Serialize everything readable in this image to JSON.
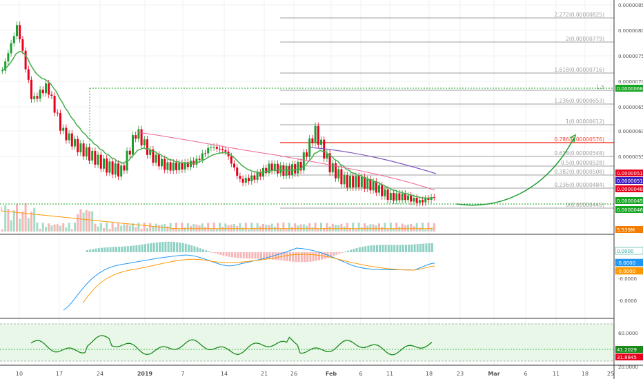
{
  "colors": {
    "up": "#26a69a",
    "down": "#ef5350",
    "ema": "#4caf50",
    "sma_pink": "#f06292",
    "sma_purple": "#7e57c2",
    "fib_line": "#9e9e9e",
    "fib_red": "#f44336",
    "fib_text": "#9e9e9e",
    "arrow": "#1b9e2f",
    "macd": "#2196f3",
    "signal": "#ff9800",
    "rsi": "#1b8a1b",
    "rsi_band": "#e8f7e8",
    "volume_ma": "#ff9800"
  },
  "chart_data": [
    {
      "name": "price",
      "type": "candlestick",
      "x_ticks": [
        "10",
        "17",
        "24",
        "2019",
        "7",
        "14",
        "21",
        "26",
        "Feb",
        "6",
        "11",
        "18",
        "23",
        "Mar",
        "6",
        "11",
        "18",
        "25"
      ],
      "y_ticks": [
        "0.00000850",
        "0.00000800",
        "0.00000750",
        "0.00000700",
        "0.00000650",
        "0.00000600",
        "0.00000550"
      ],
      "ylim": [
        4.1e-06,
        8.6e-06
      ],
      "candles_close_approx": [
        7.2e-06,
        8.1e-06,
        6.6e-06,
        6.9e-06,
        6e-06,
        5.7e-06,
        5.5e-06,
        5.3e-06,
        5.2e-06,
        6e-06,
        5.5e-06,
        5.3e-06,
        5.3e-06,
        5.4e-06,
        5.7e-06,
        5.6e-06,
        5e-06,
        5.1e-06,
        5.3e-06,
        5.2e-06,
        5.3e-06,
        6e-06,
        5.3e-06,
        5e-06,
        5e-06,
        4.9e-06,
        4.7e-06,
        4.7e-06,
        4.6e-06,
        4.7e-06
      ],
      "fib_levels": [
        {
          "ratio": "2.272",
          "price": "0.00000825"
        },
        {
          "ratio": "2",
          "price": "0.00000779"
        },
        {
          "ratio": "1.618",
          "price": "0.00000716"
        },
        {
          "ratio": "1.5",
          "price": ""
        },
        {
          "ratio": "1.236",
          "price": "0.00000653"
        },
        {
          "ratio": "1",
          "price": "0.00000612"
        },
        {
          "ratio": "0.786",
          "price": "0.00000576"
        },
        {
          "ratio": "0.618",
          "price": "0.00000548"
        },
        {
          "ratio": "0.5",
          "price": "0.00000528"
        },
        {
          "ratio": "0.382",
          "price": "0.00000508"
        },
        {
          "ratio": "0.236",
          "price": "0.00000484"
        },
        {
          "ratio": "0",
          "price": "0.00000445"
        }
      ],
      "price_badges": [
        {
          "label": "0.00000685",
          "color": "#16a521"
        },
        {
          "label": "0.00000514",
          "color": "#e8001c"
        },
        {
          "label": "0.00000513",
          "color": "#3f1fc0"
        },
        {
          "label": "0.00000482",
          "color": "#e8001c"
        },
        {
          "label": "0.00000457",
          "color": "#16a521"
        },
        {
          "label": "0.00000463",
          "color": "#16a521"
        },
        {
          "label": "5.539M",
          "color": "#f57c00"
        }
      ]
    },
    {
      "name": "macd",
      "type": "line",
      "y_ticks": [
        "0.0000",
        "-0.0000",
        "-0.0000"
      ],
      "badges": [
        {
          "label": "0.0000",
          "color": "#ffffff",
          "text": "#26a69a"
        },
        {
          "label": "-0.0000",
          "color": "#2196f3",
          "text": "#ffffff"
        },
        {
          "label": "-0.0000",
          "color": "#ff9800",
          "text": "#ffffff"
        }
      ]
    },
    {
      "name": "rsi",
      "type": "line",
      "y_ticks": [
        "60.0000",
        "20.0000"
      ],
      "badges": [
        {
          "label": "41.2029",
          "color": "#1b8a1b",
          "text": "#ffffff"
        },
        {
          "label": "31.8845",
          "color": "#e8001c",
          "text": "#ffffff"
        }
      ]
    }
  ]
}
